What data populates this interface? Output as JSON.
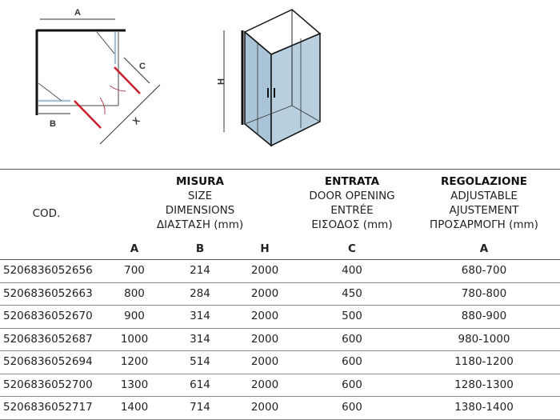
{
  "diagram": {
    "plan_labels": {
      "a": "A",
      "b": "B",
      "c": "C",
      "x": "X"
    },
    "elevation_label": "H",
    "colors": {
      "glass": "#a9c4d6",
      "door_open": "#c8202f",
      "frame": "#111111"
    }
  },
  "table": {
    "cod_header": "COD.",
    "groups": [
      {
        "title": "MISURA",
        "lines": [
          "SIZE",
          "DIMENSIONS",
          "ΔΙΑΣΤΑΣΗ (mm)"
        ]
      },
      {
        "title": "ENTRATA",
        "lines": [
          "DOOR OPENING",
          "ENTRÉE",
          "ΕΙΣΟΔΟΣ (mm)"
        ]
      },
      {
        "title": "REGOLAZIONE",
        "lines": [
          "ADJUSTABLE",
          "AJUSTEMENT",
          "ΠΡΟΣΑΡΜΟΓΗ (mm)"
        ]
      }
    ],
    "sub_headers": [
      "A",
      "B",
      "H",
      "C",
      "A"
    ],
    "rows": [
      [
        "5206836052656",
        "700",
        "214",
        "2000",
        "400",
        "680-700"
      ],
      [
        "5206836052663",
        "800",
        "284",
        "2000",
        "450",
        "780-800"
      ],
      [
        "5206836052670",
        "900",
        "314",
        "2000",
        "500",
        "880-900"
      ],
      [
        "5206836052687",
        "1000",
        "314",
        "2000",
        "600",
        "980-1000"
      ],
      [
        "5206836052694",
        "1200",
        "514",
        "2000",
        "600",
        "1180-1200"
      ],
      [
        "5206836052700",
        "1300",
        "614",
        "2000",
        "600",
        "1280-1300"
      ],
      [
        "5206836052717",
        "1400",
        "714",
        "2000",
        "600",
        "1380-1400"
      ]
    ]
  }
}
